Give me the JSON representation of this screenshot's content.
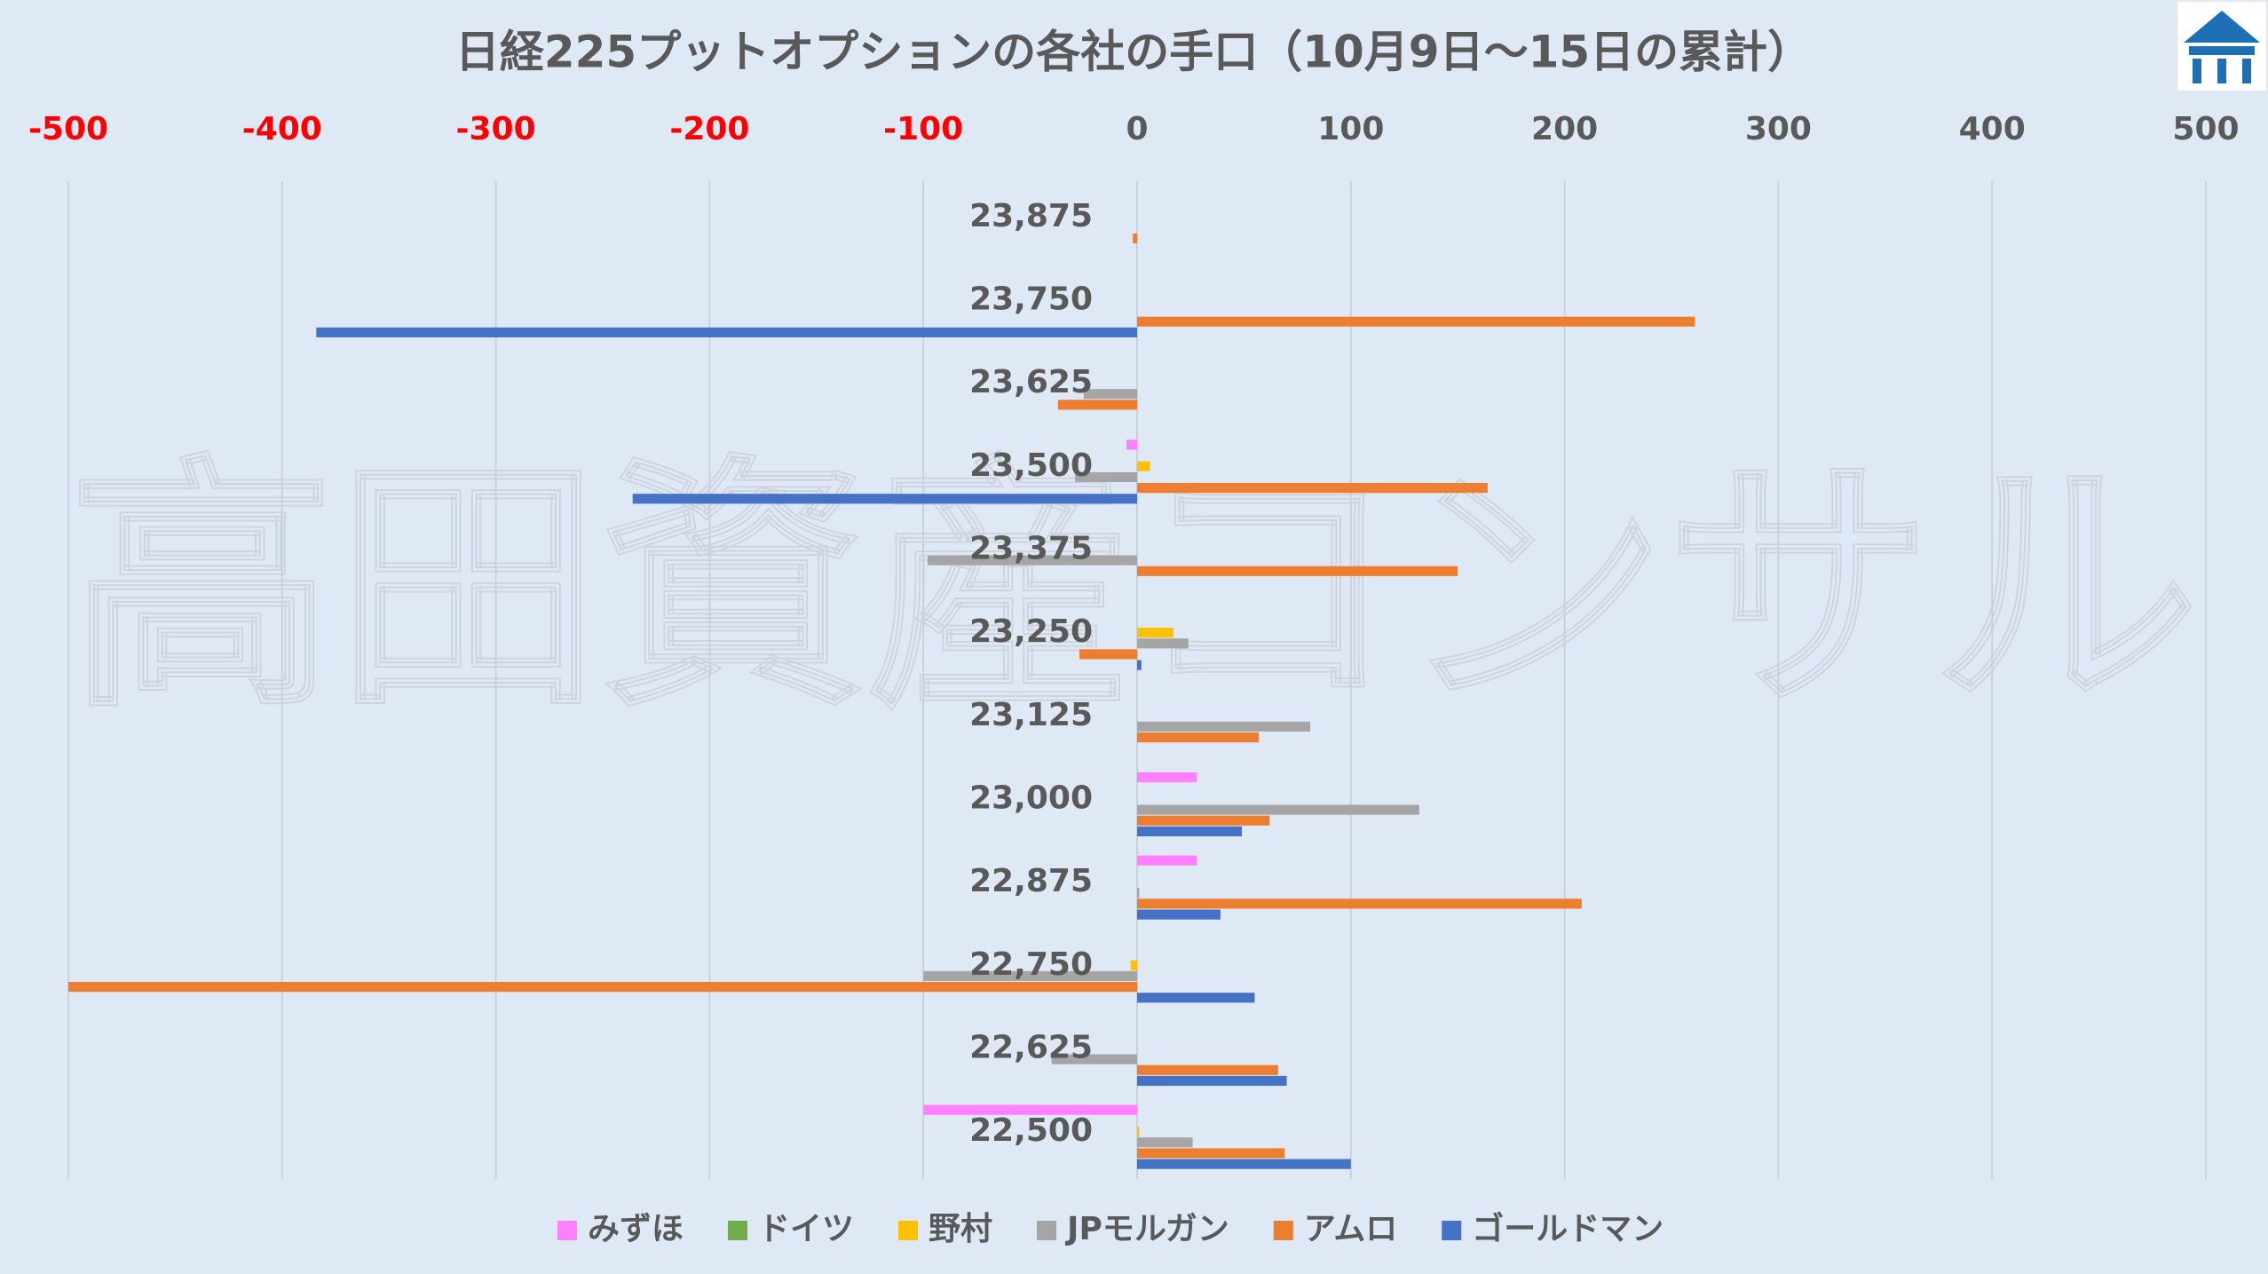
{
  "chart_data": {
    "type": "hbar",
    "title": "日経225プットオプションの各社の手口（10月9日～15日の累計）",
    "watermark": "高田資産コンサル",
    "categories": [
      "23,875",
      "23,750",
      "23,625",
      "23,500",
      "23,375",
      "23,250",
      "23,125",
      "23,000",
      "22,875",
      "22,750",
      "22,625",
      "22,500"
    ],
    "series": [
      {
        "name": "みずほ",
        "color": "#ff80ff",
        "values": [
          0,
          0,
          0,
          -5,
          0,
          0,
          0,
          28,
          28,
          0,
          0,
          -100
        ]
      },
      {
        "name": "ドイツ",
        "color": "#70ad47",
        "values": [
          0,
          0,
          0,
          0,
          0,
          0,
          0,
          0,
          0,
          0,
          0,
          0
        ]
      },
      {
        "name": "野村",
        "color": "#ffc000",
        "values": [
          0,
          0,
          0,
          6,
          0,
          17,
          0,
          0,
          0,
          -3,
          0,
          1
        ]
      },
      {
        "name": "JPモルガン",
        "color": "#a5a5a5",
        "values": [
          0,
          0,
          -25,
          -29,
          -98,
          24,
          81,
          132,
          1,
          -100,
          -40,
          26
        ]
      },
      {
        "name": "アムロ",
        "color": "#ed7d31",
        "values": [
          -2,
          261,
          -37,
          164,
          150,
          -27,
          57,
          62,
          208,
          -500,
          66,
          69
        ]
      },
      {
        "name": "ゴールドマン",
        "color": "#4472c4",
        "values": [
          0,
          -384,
          0,
          -236,
          0,
          2,
          0,
          49,
          39,
          55,
          70,
          100
        ]
      }
    ],
    "xlim": [
      -500,
      500
    ],
    "xticks": [
      -500,
      -400,
      -300,
      -200,
      -100,
      0,
      100,
      200,
      300,
      400,
      500
    ],
    "negative_tick_color": "#ff0000",
    "tick_color": "#595959",
    "grid": true,
    "legend": "bottom"
  }
}
